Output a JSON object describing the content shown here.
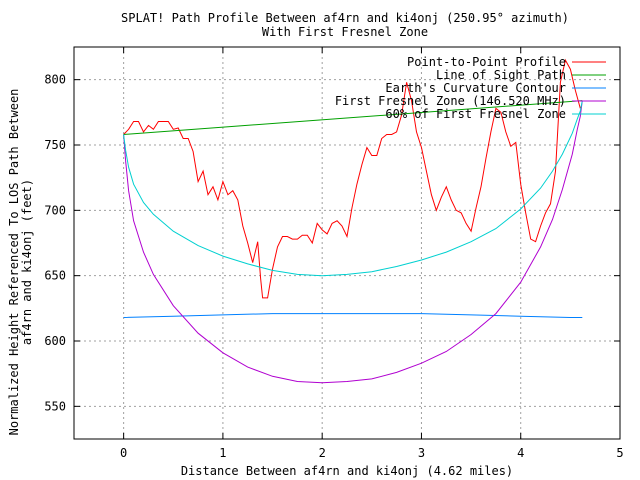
{
  "chart_data": {
    "type": "line",
    "title_line1": "SPLAT! Path Profile Between af4rn and ki4onj (250.95° azimuth)",
    "title_line2": "With First Fresnel Zone",
    "xlabel": "Distance Between af4rn and ki4onj (4.62 miles)",
    "ylabel_line1": "Normalized Height Referenced To LOS Path Between",
    "ylabel_line2": "af4rn and ki4onj (feet)",
    "xlim": [
      -0.5,
      5
    ],
    "ylim": [
      525,
      825
    ],
    "xticks": [
      0,
      1,
      2,
      3,
      4,
      5
    ],
    "yticks": [
      550,
      600,
      650,
      700,
      750,
      800
    ],
    "grid": true,
    "legend_position": "top-right",
    "series": [
      {
        "name": "Point-to-Point Profile",
        "color": "#ff0000",
        "x": [
          0,
          0.05,
          0.1,
          0.15,
          0.2,
          0.25,
          0.3,
          0.35,
          0.4,
          0.45,
          0.5,
          0.55,
          0.6,
          0.65,
          0.7,
          0.75,
          0.8,
          0.85,
          0.9,
          0.95,
          1.0,
          1.05,
          1.1,
          1.15,
          1.2,
          1.25,
          1.3,
          1.35,
          1.38,
          1.4,
          1.45,
          1.5,
          1.55,
          1.6,
          1.65,
          1.7,
          1.75,
          1.8,
          1.85,
          1.9,
          1.95,
          2.0,
          2.05,
          2.1,
          2.15,
          2.2,
          2.25,
          2.3,
          2.35,
          2.4,
          2.45,
          2.5,
          2.55,
          2.6,
          2.65,
          2.7,
          2.75,
          2.8,
          2.85,
          2.9,
          2.95,
          3.0,
          3.05,
          3.1,
          3.15,
          3.2,
          3.25,
          3.3,
          3.35,
          3.4,
          3.45,
          3.5,
          3.55,
          3.6,
          3.65,
          3.7,
          3.75,
          3.8,
          3.85,
          3.9,
          3.95,
          4.0,
          4.05,
          4.1,
          4.15,
          4.2,
          4.25,
          4.3,
          4.35,
          4.4,
          4.45,
          4.5,
          4.55,
          4.6
        ],
        "y": [
          758,
          762,
          768,
          768,
          760,
          765,
          762,
          768,
          768,
          768,
          762,
          763,
          755,
          755,
          745,
          722,
          730,
          712,
          718,
          708,
          722,
          712,
          715,
          708,
          688,
          675,
          660,
          676,
          648,
          633,
          633,
          655,
          672,
          680,
          680,
          678,
          678,
          681,
          681,
          675,
          690,
          685,
          682,
          690,
          692,
          688,
          680,
          702,
          720,
          735,
          748,
          742,
          742,
          755,
          758,
          758,
          760,
          773,
          798,
          784,
          760,
          748,
          730,
          712,
          700,
          710,
          718,
          708,
          700,
          698,
          690,
          684,
          702,
          718,
          740,
          760,
          778,
          775,
          760,
          749,
          752,
          720,
          698,
          678,
          676,
          688,
          698,
          705,
          730,
          798,
          815,
          808,
          792,
          778
        ],
        "data_label": ""
      },
      {
        "name": "Line of Sight Path",
        "color": "#00a000",
        "x": [
          0,
          4.62
        ],
        "y": [
          758,
          784
        ]
      },
      {
        "name": "Earth's Curvature Contour",
        "color": "#0080ff",
        "x": [
          0,
          0.5,
          1.0,
          1.5,
          2.0,
          2.31,
          2.5,
          3.0,
          3.5,
          4.0,
          4.5,
          4.62
        ],
        "y": [
          618,
          619,
          620,
          621,
          621,
          621,
          621,
          621,
          620,
          619,
          618,
          618
        ]
      },
      {
        "name": "First Fresnel Zone (146.520 MHz)",
        "color": "#b000d0",
        "x": [
          0,
          0.02,
          0.05,
          0.1,
          0.2,
          0.3,
          0.5,
          0.75,
          1.0,
          1.25,
          1.5,
          1.75,
          2.0,
          2.25,
          2.5,
          2.75,
          3.0,
          3.25,
          3.5,
          3.75,
          4.0,
          4.2,
          4.32,
          4.42,
          4.52,
          4.57,
          4.6,
          4.62
        ],
        "y": [
          758,
          738,
          715,
          692,
          668,
          651,
          627,
          606,
          591,
          580,
          573,
          569,
          568,
          569,
          571,
          576,
          583,
          592,
          605,
          621,
          645,
          672,
          693,
          716,
          743,
          762,
          772,
          784
        ]
      },
      {
        "name": "60% of First Fresnel Zone",
        "color": "#00d0d0",
        "x": [
          0,
          0.02,
          0.05,
          0.1,
          0.2,
          0.3,
          0.5,
          0.75,
          1.0,
          1.25,
          1.5,
          1.75,
          2.0,
          2.25,
          2.5,
          2.75,
          3.0,
          3.25,
          3.5,
          3.75,
          4.0,
          4.2,
          4.32,
          4.42,
          4.52,
          4.57,
          4.6,
          4.62
        ],
        "y": [
          758,
          746,
          733,
          720,
          706,
          697,
          684,
          673,
          665,
          659,
          654,
          651,
          650,
          651,
          653,
          657,
          662,
          668,
          676,
          686,
          701,
          717,
          730,
          743,
          759,
          770,
          776,
          784
        ]
      }
    ]
  }
}
